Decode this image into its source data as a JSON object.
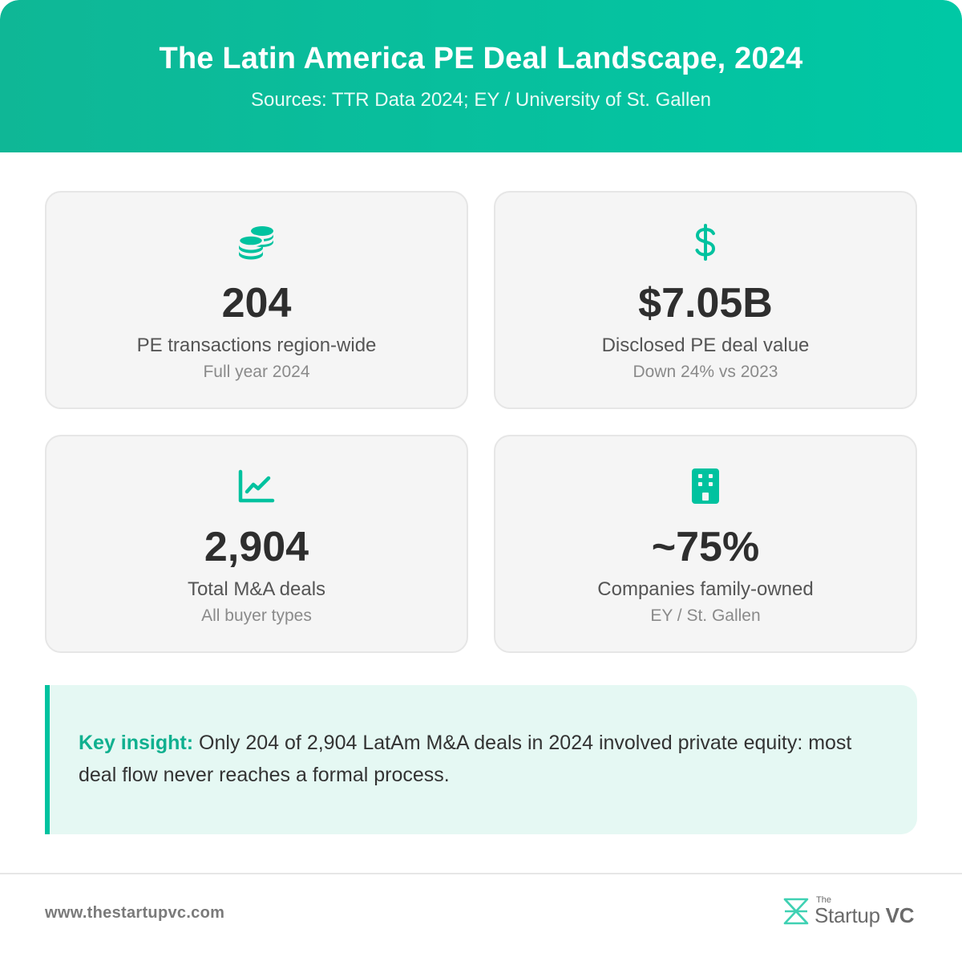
{
  "header": {
    "title": "The Latin America PE Deal Landscape, 2024",
    "subtitle": "Sources: TTR Data 2024; EY / University of St. Gallen"
  },
  "cards": [
    {
      "icon": "coins-icon",
      "value": "204",
      "label": "PE transactions region-wide",
      "sub": "Full year 2024"
    },
    {
      "icon": "dollar-icon",
      "value": "$7.05B",
      "label": "Disclosed PE deal value",
      "sub": "Down 24% vs 2023"
    },
    {
      "icon": "chart-line-icon",
      "value": "2,904",
      "label": "Total M&A deals",
      "sub": "All buyer types"
    },
    {
      "icon": "building-icon",
      "value": "~75%",
      "label": "Companies family-owned",
      "sub": "EY / St. Gallen"
    }
  ],
  "insight": {
    "key": "Key insight:",
    "text": " Only 204 of 2,904 LatAm M&A deals in 2024 involved private equity: most deal flow never reaches a formal process."
  },
  "footer": {
    "url": "www.thestartupvc.com",
    "logo_the": "The",
    "logo_startup": "Startup",
    "logo_vc": "VC"
  },
  "colors": {
    "accent": "#00c29f",
    "header_start": "#0fb796",
    "header_end": "#00c8a5",
    "card_bg": "#f5f5f5",
    "insight_bg": "#e5f8f3"
  }
}
